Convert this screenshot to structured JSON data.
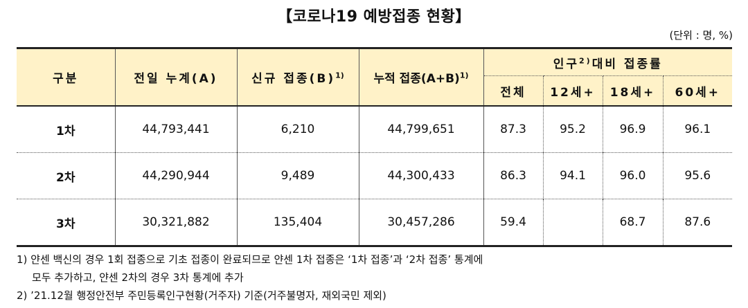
{
  "title": "【코로나19 예방접종 현황】",
  "unit": "(단위 : 명, %)",
  "headers": {
    "category": "구분",
    "prev_cumulative": "전일 누계(A)",
    "new_vacc": "신규 접종(B)",
    "new_vacc_sup": "1)",
    "cumulative": "누적 접종(A+B)",
    "cumulative_sup": "1)",
    "ratio_group_pre": "인구",
    "ratio_group_sup": "2)",
    "ratio_group_post": "대비 접종률",
    "sub": [
      "전체",
      "12세+",
      "18세+",
      "60세+"
    ]
  },
  "rows": [
    {
      "label": "1차",
      "prev": "44,793,441",
      "new": "6,210",
      "cum": "44,799,651",
      "total": "87.3",
      "age12": "95.2",
      "age18": "96.9",
      "age60": "96.1"
    },
    {
      "label": "2차",
      "prev": "44,290,944",
      "new": "9,489",
      "cum": "44,300,433",
      "total": "86.3",
      "age12": "94.1",
      "age18": "96.0",
      "age60": "95.6"
    },
    {
      "label": "3차",
      "prev": "30,321,882",
      "new": "135,404",
      "cum": "30,457,286",
      "total": "59.4",
      "age12": "",
      "age18": "68.7",
      "age60": "87.6"
    }
  ],
  "notes": {
    "note1_line1": "1) 얀센 백신의 경우 1회 접종으로 기초 접종이 완료되므로 얀센 1차 접종은 ‘1차 접종’과 ‘2차 접종’ 통계에",
    "note1_line2": "모두 추가하고, 얀센 2차의 경우 3차 통계에 추가",
    "note2": "2) ’21.12월 행정안전부 주민등록인구현황(거주자) 기준(거주불명자, 재외국민 제외)"
  }
}
